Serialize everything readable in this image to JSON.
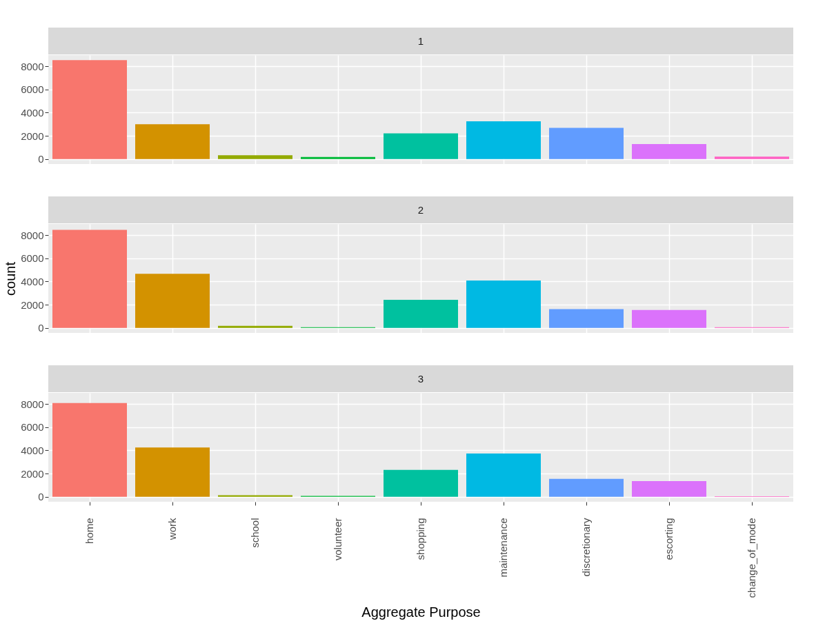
{
  "chart_data": [
    {
      "type": "bar",
      "title": "1",
      "categories": [
        null,
        null,
        null,
        null,
        null,
        null,
        null,
        null,
        null
      ],
      "colors": [
        "#f8766d",
        "#d39200",
        "#93aa00",
        "#00ba38",
        "#00c19f",
        "#00b9e3",
        "#619cff",
        "#db72fb",
        "#ff61c3"
      ],
      "values": [
        8530,
        3000,
        330,
        180,
        2220,
        3260,
        2690,
        1290,
        210
      ],
      "ylim": [
        -430,
        8960
      ],
      "yticks": [
        0,
        2000,
        4000,
        6000,
        8000
      ],
      "grid": true,
      "tick_labels": "y"
    },
    {
      "type": "bar",
      "title": "2",
      "ylabel": "count",
      "categories": [
        null,
        null,
        null,
        null,
        null,
        null,
        null,
        null,
        null
      ],
      "colors": [
        "#f8766d",
        "#d39200",
        "#93aa00",
        "#00ba38",
        "#00c19f",
        "#00b9e3",
        "#619cff",
        "#db72fb",
        "#ff61c3"
      ],
      "values": [
        8450,
        4670,
        180,
        60,
        2420,
        4080,
        1620,
        1550,
        60
      ],
      "ylim": [
        -430,
        8960
      ],
      "yticks": [
        0,
        2000,
        4000,
        6000,
        8000
      ],
      "grid": true,
      "tick_labels": "y"
    },
    {
      "type": "bar",
      "title": "3",
      "xlabel": "Aggregate Purpose",
      "categories": [
        "home",
        "work",
        "school",
        "volunteer",
        "shopping",
        "maintenance",
        "discretionary",
        "escorting",
        "change_of_mode"
      ],
      "colors": [
        "#f8766d",
        "#d39200",
        "#93aa00",
        "#00ba38",
        "#00c19f",
        "#00b9e3",
        "#619cff",
        "#db72fb",
        "#ff61c3"
      ],
      "values": [
        8080,
        4250,
        140,
        80,
        2320,
        3730,
        1540,
        1350,
        40
      ],
      "ylim": [
        -430,
        8960
      ],
      "yticks": [
        0,
        2000,
        4000,
        6000,
        8000
      ],
      "grid": true
    }
  ]
}
